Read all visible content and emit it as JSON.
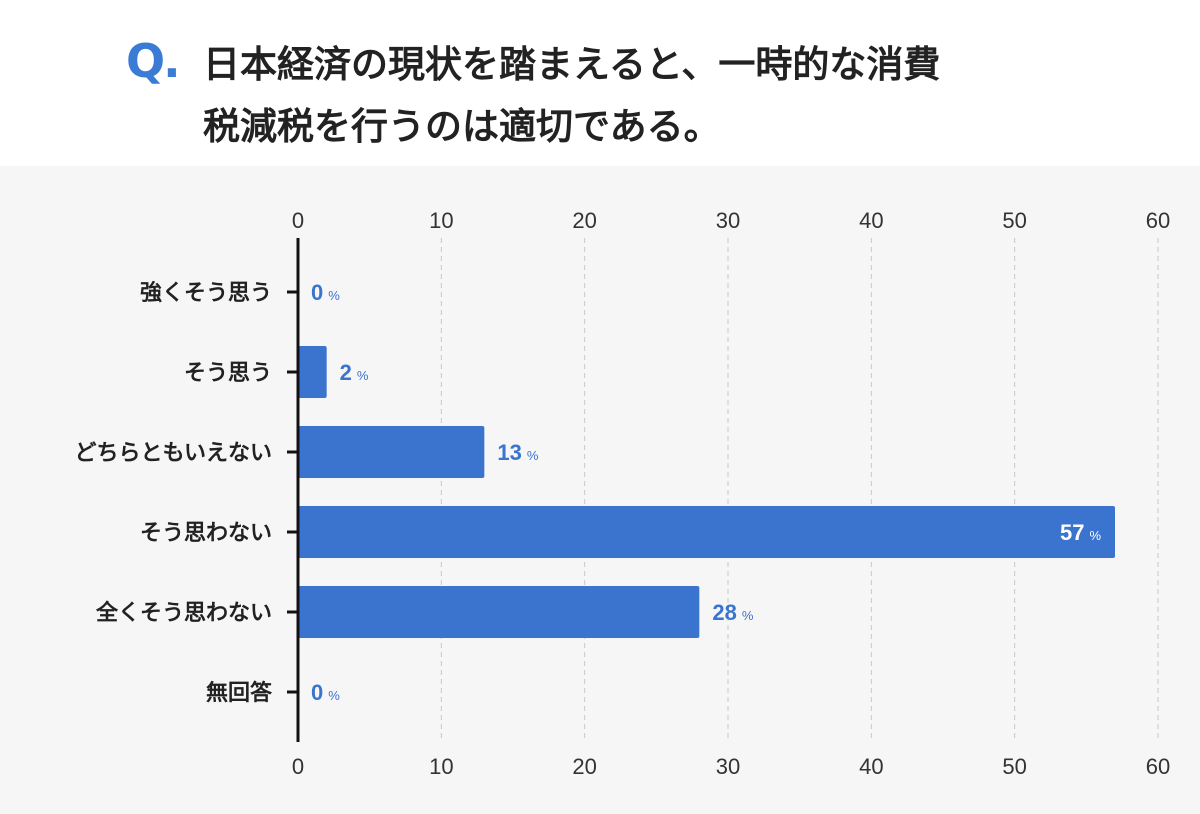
{
  "question_mark": "Q.",
  "title": {
    "line1": "日本経済の現状を踏まえると、一時的な消費",
    "line2": "税減税を行うのは適切である。"
  },
  "chart_data": {
    "type": "bar",
    "orientation": "horizontal",
    "categories": [
      "強くそう思う",
      "そう思う",
      "どちらともいえない",
      "そう思わない",
      "全くそう思わない",
      "無回答"
    ],
    "values": [
      0,
      2,
      13,
      57,
      28,
      0
    ],
    "unit": "%",
    "xlim": [
      0,
      60
    ],
    "xticks": [
      0,
      10,
      20,
      30,
      40,
      50,
      60
    ],
    "tick_axes": "top-and-bottom",
    "grid": "vertical-dashed",
    "bar_color": "#3a74cf",
    "label_color": "#3a74cf",
    "inside_label_color": "#ffffff"
  }
}
